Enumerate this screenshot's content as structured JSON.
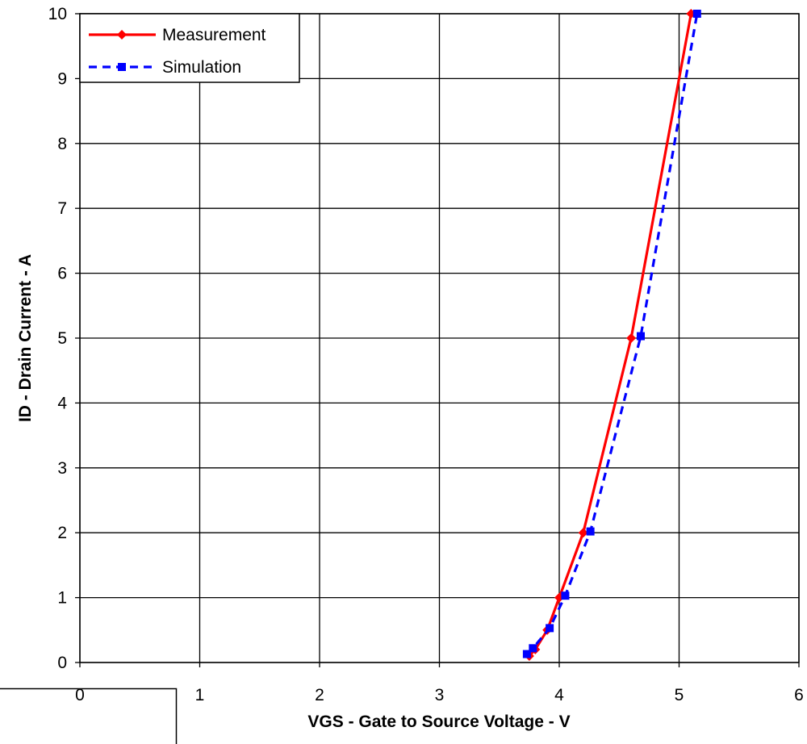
{
  "chart_data": {
    "type": "line",
    "xlabel": "VGS - Gate to Source Voltage - V",
    "ylabel": "ID - Drain Current - A",
    "xlim": [
      0,
      6
    ],
    "ylim": [
      0,
      10
    ],
    "x_ticks": [
      "0",
      "1",
      "2",
      "3",
      "4",
      "5",
      "6"
    ],
    "y_ticks": [
      "0",
      "1",
      "2",
      "3",
      "4",
      "5",
      "6",
      "7",
      "8",
      "9",
      "10"
    ],
    "grid": true,
    "legend_position": "top-left",
    "series": [
      {
        "name": "Measurement",
        "color": "#ff0000",
        "style": "solid",
        "marker": "diamond",
        "points": [
          [
            3.75,
            0.1
          ],
          [
            3.8,
            0.2
          ],
          [
            3.9,
            0.5
          ],
          [
            4.0,
            1.0
          ],
          [
            4.2,
            2.0
          ],
          [
            4.6,
            5.0
          ],
          [
            5.1,
            10.0
          ]
        ]
      },
      {
        "name": "Simulation",
        "color": "#0000ff",
        "style": "dashed",
        "marker": "square",
        "points": [
          [
            3.73,
            0.13
          ],
          [
            3.78,
            0.22
          ],
          [
            3.92,
            0.53
          ],
          [
            4.05,
            1.03
          ],
          [
            4.26,
            2.02
          ],
          [
            4.68,
            5.03
          ],
          [
            5.15,
            10.0
          ]
        ]
      }
    ]
  }
}
